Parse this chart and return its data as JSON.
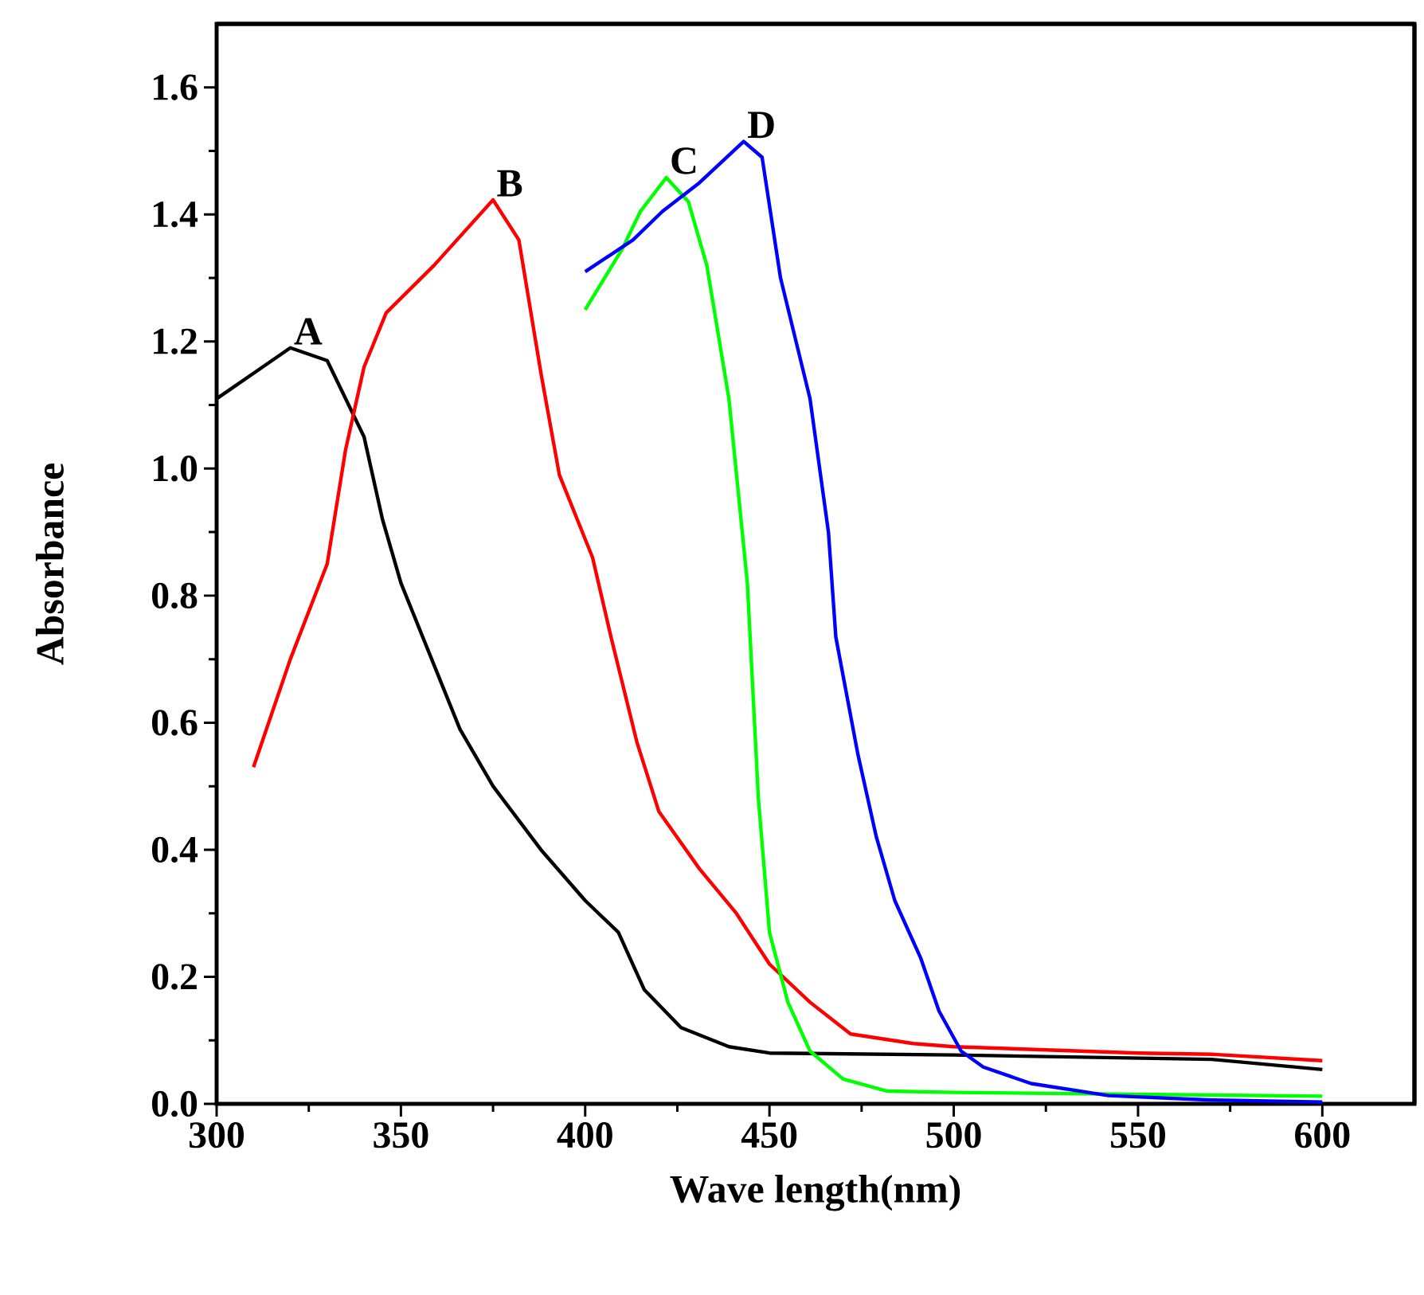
{
  "chart_data": {
    "type": "line",
    "xlabel": "Wave length(nm)",
    "ylabel": "Absorbance",
    "xlim": [
      300,
      625
    ],
    "xticks": [
      300,
      350,
      400,
      450,
      500,
      550,
      600
    ],
    "ylim": [
      0,
      1.7
    ],
    "yticks": [
      {
        "value": 0,
        "label": "0.0"
      },
      {
        "value": 0.2,
        "label": "0.2"
      },
      {
        "value": 0.4,
        "label": "0.4"
      },
      {
        "value": 0.6,
        "label": "0.6"
      },
      {
        "value": 0.8,
        "label": "0.8"
      },
      {
        "value": 1.0,
        "label": "1.0"
      },
      {
        "value": 1.2,
        "label": "1.2"
      },
      {
        "value": 1.4,
        "label": "1.4"
      },
      {
        "value": 1.6,
        "label": "1.6"
      }
    ],
    "grid": false,
    "marker": "none",
    "line_style": "solid",
    "series": [
      {
        "color": "#000000",
        "x": [
          300,
          310,
          320,
          330,
          340,
          345,
          350,
          366,
          375,
          388,
          400,
          409,
          416,
          426,
          439,
          450,
          500,
          570,
          600
        ],
        "values": [
          1.11,
          1.15,
          1.19,
          1.17,
          1.05,
          0.92,
          0.82,
          0.59,
          0.5,
          0.4,
          0.32,
          0.27,
          0.18,
          0.12,
          0.09,
          0.08,
          0.077,
          0.07,
          0.054
        ]
      },
      {
        "color": "#ff0000",
        "x": [
          310,
          320,
          330,
          335,
          340,
          346,
          359,
          375,
          382,
          388,
          393,
          402,
          407,
          414,
          420,
          431,
          441,
          450,
          461,
          472,
          489,
          500,
          550,
          570,
          600
        ],
        "values": [
          0.53,
          0.7,
          0.85,
          1.03,
          1.16,
          1.245,
          1.32,
          1.423,
          1.36,
          1.15,
          0.99,
          0.86,
          0.735,
          0.57,
          0.46,
          0.37,
          0.3,
          0.22,
          0.16,
          0.11,
          0.095,
          0.09,
          0.08,
          0.078,
          0.068
        ]
      },
      {
        "color": "#00ff00",
        "x": [
          400,
          410,
          415,
          422,
          428,
          433,
          439,
          444,
          447,
          450,
          455,
          461,
          470,
          482,
          500,
          600
        ],
        "values": [
          1.25,
          1.345,
          1.405,
          1.458,
          1.42,
          1.32,
          1.11,
          0.82,
          0.48,
          0.27,
          0.16,
          0.083,
          0.039,
          0.02,
          0.018,
          0.012
        ]
      },
      {
        "color": "#0000ff",
        "x": [
          400,
          413,
          421,
          431,
          443,
          448,
          453,
          461,
          466,
          468,
          474,
          479,
          484,
          491,
          496,
          502,
          508,
          521,
          542,
          570,
          600
        ],
        "values": [
          1.31,
          1.36,
          1.405,
          1.45,
          1.515,
          1.49,
          1.3,
          1.11,
          0.9,
          0.735,
          0.55,
          0.42,
          0.32,
          0.23,
          0.146,
          0.083,
          0.058,
          0.032,
          0.013,
          0.006,
          0.003
        ]
      }
    ],
    "annotations": [
      {
        "text": "A",
        "x": 320,
        "y": 1.19
      },
      {
        "text": "B",
        "x": 375,
        "y": 1.423
      },
      {
        "text": "C",
        "x": 422,
        "y": 1.458
      },
      {
        "text": "D",
        "x": 443,
        "y": 1.515
      }
    ]
  }
}
